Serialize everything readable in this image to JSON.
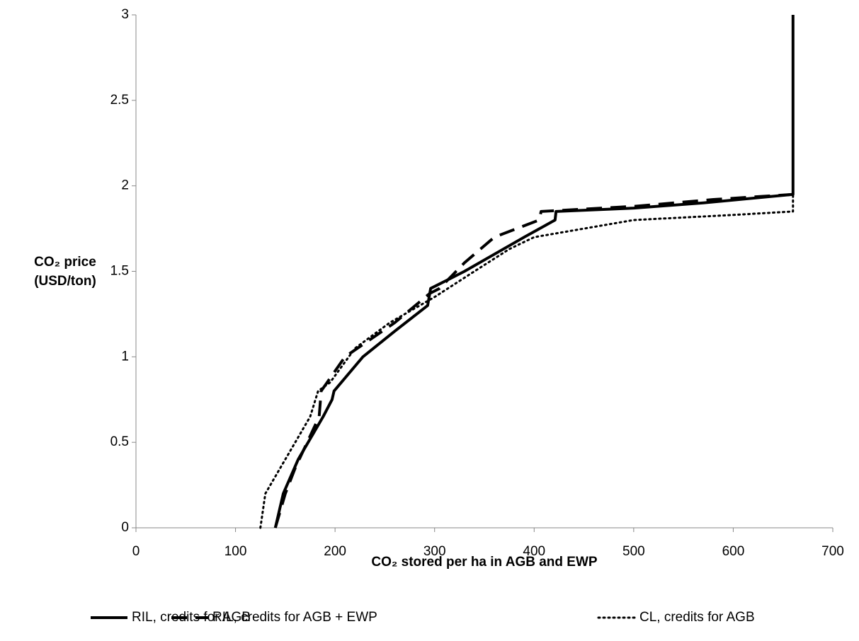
{
  "chart_data": {
    "type": "line",
    "y_label_lines": [
      "CO₂ price",
      "(USD/ton)"
    ],
    "x_label": "CO₂ stored per ha in AGB and EWP",
    "xlim": [
      0,
      700
    ],
    "xticks": [
      0,
      100,
      200,
      300,
      400,
      500,
      600,
      700
    ],
    "ylim": [
      0,
      3
    ],
    "yticks": [
      0,
      0.5,
      1,
      1.5,
      2,
      2.5,
      3
    ],
    "legend": "bottom",
    "series": [
      {
        "name": "RIL, credits for AGB",
        "color": "#000000",
        "dash": "solid",
        "x": [
          140,
          148,
          163,
          178,
          188,
          197,
          199,
          228,
          260,
          293,
          296,
          330,
          360,
          390,
          421,
          422,
          500,
          570,
          660,
          660
        ],
        "values": [
          0,
          0.2,
          0.4,
          0.55,
          0.65,
          0.75,
          0.8,
          1.0,
          1.15,
          1.3,
          1.4,
          1.5,
          1.6,
          1.7,
          1.8,
          1.85,
          1.87,
          1.9,
          1.95,
          3
        ]
      },
      {
        "name": "RIL, credits for AGB + EWP",
        "color": "#000000",
        "dash": "dashed",
        "x": [
          140,
          150,
          160,
          172,
          184,
          186,
          192,
          210,
          235,
          260,
          295,
          305,
          330,
          360,
          405,
          407,
          500,
          580,
          660
        ],
        "values": [
          0,
          0.2,
          0.35,
          0.5,
          0.65,
          0.8,
          0.85,
          1.0,
          1.1,
          1.2,
          1.37,
          1.4,
          1.55,
          1.7,
          1.8,
          1.85,
          1.88,
          1.92,
          1.95
        ]
      },
      {
        "name": "CL, credits for AGB",
        "color": "#000000",
        "dash": "dotted",
        "x": [
          125,
          130,
          145,
          160,
          175,
          183,
          195,
          220,
          255,
          300,
          340,
          375,
          400,
          450,
          500,
          600,
          660,
          660
        ],
        "values": [
          0,
          0.2,
          0.35,
          0.5,
          0.65,
          0.8,
          0.85,
          1.05,
          1.2,
          1.35,
          1.5,
          1.63,
          1.7,
          1.75,
          1.8,
          1.83,
          1.85,
          1.95
        ]
      }
    ]
  }
}
